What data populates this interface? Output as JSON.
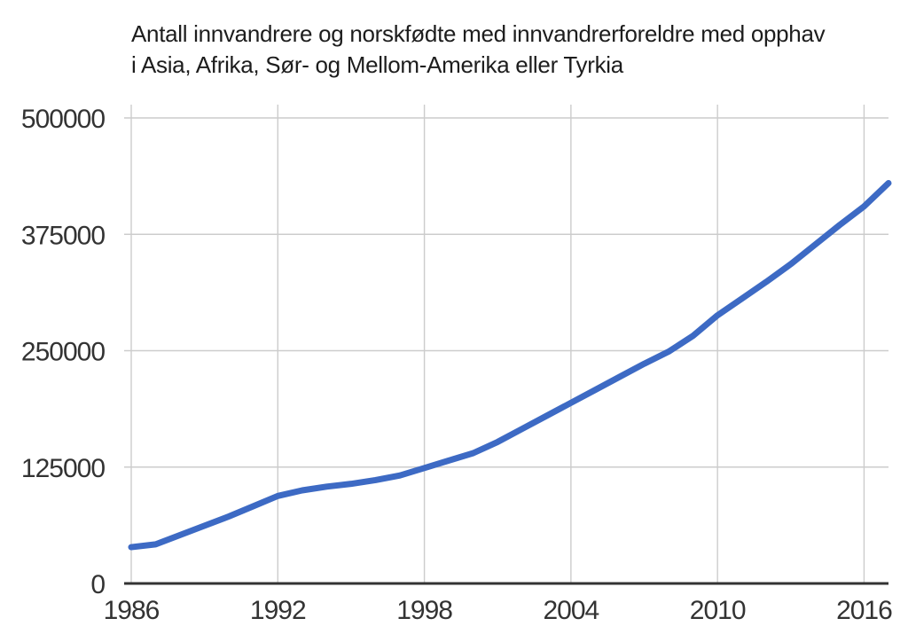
{
  "chart_data": {
    "type": "line",
    "title": "Antall innvandrere og norskfødte med innvandrerforeldre med opphav i Asia, Afrika, Sør- og Mellom-Amerika eller Tyrkia",
    "title_line1": "Antall innvandrere og norskfødte med innvandrerforeldre med opphav",
    "title_line2": "i Asia, Afrika, Sør- og Mellom-Amerika eller Tyrkia",
    "xlabel": "",
    "ylabel": "",
    "xlim": [
      1986,
      2017
    ],
    "ylim": [
      0,
      500000
    ],
    "x_ticks": [
      1986,
      1992,
      1998,
      2004,
      2010,
      2016
    ],
    "y_ticks": [
      0,
      125000,
      250000,
      375000,
      500000
    ],
    "grid": true,
    "legend": "none",
    "line_color": "#3d6ac4",
    "grid_color": "#cccccc",
    "axis_color": "#333333",
    "text_color": "#333333",
    "title_color": "#1d1d1d",
    "x": [
      1986,
      1987,
      1988,
      1989,
      1990,
      1991,
      1992,
      1993,
      1994,
      1995,
      1996,
      1997,
      1998,
      1999,
      2000,
      2001,
      2002,
      2003,
      2004,
      2005,
      2006,
      2007,
      2008,
      2009,
      2010,
      2011,
      2012,
      2013,
      2014,
      2015,
      2016,
      2017
    ],
    "series": [
      {
        "values": [
          39000,
          42000,
          52000,
          62000,
          72000,
          83000,
          94000,
          100000,
          104000,
          107000,
          111000,
          116000,
          124000,
          132000,
          140000,
          152000,
          166000,
          180000,
          194000,
          208000,
          222000,
          236000,
          249000,
          266000,
          288000,
          306000,
          324000,
          343000,
          364000,
          385000,
          405000,
          430000
        ]
      }
    ]
  }
}
